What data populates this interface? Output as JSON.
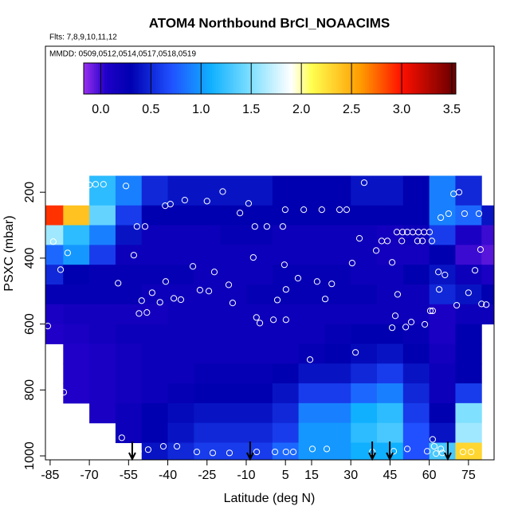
{
  "chart_data": {
    "type": "heatmap",
    "title": "ATOM4 Northbound BrCl_NOAACIMS",
    "subtitle": "Flts: 7,8,9,10,11,12",
    "annotation": "MMDD: 0509,0512,0514,0517,0518,0519",
    "xlabel": "Latitude (deg N)",
    "ylabel": "PSXC (mbar)",
    "xlim": [
      -86.8,
      84.8
    ],
    "xticks": [
      -85,
      -70,
      -55,
      -40,
      -25,
      -10,
      5,
      15,
      30,
      45,
      60,
      75
    ],
    "ylim": [
      1012,
      -243
    ],
    "yticks": [
      200,
      400,
      600,
      800,
      1000
    ],
    "x_edges": [
      -87,
      -80,
      -70,
      -60,
      -50,
      -40,
      -30,
      -20,
      -10,
      0,
      10,
      20,
      30,
      40,
      50,
      60,
      70,
      80,
      85
    ],
    "y_edges": [
      150,
      240,
      300,
      360,
      420,
      480,
      540,
      600,
      660,
      720,
      780,
      840,
      900,
      960,
      1012
    ],
    "values": [
      [
        null,
        1.9,
        1.2,
        0.9,
        0.5,
        0.4,
        0.4,
        0.4,
        0.4,
        0.3,
        0.3,
        0.3,
        0.4,
        0.4,
        0.3,
        0.9,
        0.5,
        null
      ],
      [
        2.9,
        2.4,
        1.4,
        0.6,
        0.3,
        0.3,
        0.3,
        0.3,
        0.3,
        0.3,
        0.3,
        0.3,
        0.3,
        0.3,
        0.3,
        0.9,
        0.8,
        0.4
      ],
      [
        1.6,
        1.2,
        0.9,
        0.4,
        0.2,
        0.2,
        0.2,
        0.25,
        0.25,
        0.2,
        0.2,
        0.2,
        0.2,
        0.15,
        0.2,
        0.6,
        0.1,
        0.0
      ],
      [
        0.8,
        1.0,
        0.6,
        0.2,
        0.2,
        0.2,
        0.2,
        0.2,
        0.2,
        0.2,
        0.2,
        0.2,
        0.2,
        0.15,
        0.15,
        0.3,
        0.0,
        -0.05
      ],
      [
        0.5,
        0.3,
        0.25,
        0.25,
        0.25,
        0.25,
        0.2,
        0.2,
        0.2,
        0.25,
        0.25,
        0.25,
        0.2,
        0.2,
        0.3,
        0.4,
        0.2,
        0.1
      ],
      [
        0.25,
        0.25,
        0.25,
        0.25,
        0.2,
        0.2,
        0.2,
        0.2,
        0.25,
        0.25,
        0.25,
        0.25,
        0.25,
        0.2,
        0.2,
        0.5,
        0.4,
        0.3
      ],
      [
        0.1,
        0.15,
        0.15,
        0.15,
        0.15,
        0.2,
        0.2,
        0.2,
        0.2,
        0.2,
        0.2,
        0.2,
        0.2,
        0.2,
        0.2,
        0.1,
        0.2,
        0.2
      ],
      [
        0.05,
        0.1,
        0.15,
        0.2,
        0.2,
        0.2,
        0.2,
        0.2,
        0.2,
        0.2,
        0.2,
        0.25,
        0.3,
        0.3,
        0.25,
        0.1,
        0.3,
        null
      ],
      [
        null,
        0.05,
        0.1,
        0.15,
        0.2,
        0.2,
        0.2,
        0.2,
        0.2,
        0.2,
        0.25,
        0.3,
        0.35,
        0.4,
        0.3,
        0.15,
        0.3,
        null
      ],
      [
        null,
        0.05,
        0.1,
        0.15,
        0.2,
        0.2,
        0.25,
        0.25,
        0.25,
        0.3,
        0.4,
        0.4,
        0.5,
        0.6,
        0.4,
        0.2,
        0.3,
        null
      ],
      [
        null,
        0.05,
        0.1,
        0.15,
        0.2,
        0.25,
        0.3,
        0.3,
        0.3,
        0.4,
        0.6,
        0.6,
        0.8,
        0.9,
        0.5,
        0.2,
        0.6,
        null
      ],
      [
        null,
        null,
        0.1,
        0.2,
        0.3,
        0.35,
        0.4,
        0.4,
        0.4,
        0.5,
        0.9,
        0.9,
        1.1,
        1.2,
        0.6,
        0.3,
        1.5,
        null
      ],
      [
        null,
        null,
        null,
        0.2,
        0.3,
        0.4,
        0.5,
        0.5,
        0.5,
        0.6,
        1.0,
        1.0,
        1.2,
        1.3,
        0.7,
        0.4,
        1.6,
        null
      ],
      [
        null,
        null,
        null,
        null,
        0.4,
        0.5,
        0.6,
        0.6,
        0.6,
        0.8,
        1.0,
        1.0,
        1.1,
        1.1,
        0.7,
        1.3,
        2.3,
        null
      ]
    ],
    "points": {
      "x": [
        -84.4,
        -72.8,
        -70,
        -67.6,
        -64.6,
        -56,
        -83.8,
        -78.3,
        -81,
        -59,
        -53,
        -51.8,
        -48.7,
        -51,
        -48,
        -50,
        -46,
        -43,
        -40.8,
        -37.7,
        -41,
        -39,
        -35,
        -33.5,
        -30.4,
        -27.7,
        -24.3,
        -25,
        -22.2,
        -19,
        -16.7,
        -15.2,
        -12.4,
        -9.1,
        -7.3,
        -6.7,
        -6.1,
        -4.8,
        -2.1,
        0.4,
        1.9,
        4,
        5.2,
        4.9,
        5.2,
        4.6,
        9.8,
        12,
        14.4,
        17.1,
        18.9,
        20.2,
        22.7,
        25.7,
        28.4,
        30.5,
        31.8,
        35.1,
        33.3,
        39.7,
        41.8,
        44,
        45.8,
        47.6,
        47.9,
        49.8,
        51.6,
        53.7,
        55.9,
        58,
        60.1,
        61,
        49.5,
        55.5,
        57.4,
        47,
        45.8,
        51,
        53.1,
        58.3,
        60.4,
        61.3,
        63.8,
        64.4,
        67.4,
        69.3,
        71.4,
        73.5,
        79,
        70.5,
        75,
        80,
        81.8,
        77.5,
        79.6,
        63.5,
        66,
        -57.6,
        -47.5,
        -41.7,
        -36.5,
        -28.9,
        -22.8,
        -16.4,
        -6,
        1,
        5.2,
        8,
        15.3,
        20.8,
        38.2,
        46.4,
        51.6,
        59.2,
        61.3,
        61.9,
        64.4,
        62.6,
        65,
        72.9,
        76,
        -85.9,
        -79.8,
        -51.2
      ],
      "y": [
        205,
        198,
        178,
        176,
        176,
        181,
        350,
        384,
        435,
        476,
        391,
        304,
        304,
        568,
        565,
        529,
        505,
        534,
        471,
        522,
        241,
        236,
        526,
        224,
        425,
        497,
        500,
        227,
        442,
        198,
        481,
        536,
        263,
        234,
        398,
        304,
        580,
        597,
        304,
        587,
        527,
        304,
        495,
        253,
        587,
        420,
        461,
        253,
        708,
        471,
        253,
        524,
        478,
        253,
        253,
        415,
        686,
        171,
        340,
        377,
        348,
        348,
        413,
        321,
        510,
        321,
        321,
        321,
        321,
        321,
        321,
        348,
        348,
        348,
        348,
        575,
        611,
        609,
        594,
        601,
        560,
        560,
        495,
        277,
        265,
        205,
        200,
        265,
        265,
        543,
        505,
        539,
        541,
        437,
        374,
        442,
        451,
        945,
        981,
        971,
        971,
        988,
        991,
        991,
        988,
        988,
        988,
        988,
        979,
        979,
        988,
        986,
        979,
        986,
        950,
        971,
        979,
        993,
        991,
        988,
        988,
        606,
        807,
        986
      ],
      "color": "#ffffff"
    },
    "arrows": [
      -53.6,
      -8.5,
      38.2,
      44.9,
      67.1
    ],
    "colorbar": {
      "lim": [
        -0.17,
        3.54
      ],
      "ticks": [
        {
          "value": 0,
          "label": "0.0"
        },
        0.5,
        {
          "value": 1,
          "label": "1.0"
        },
        1.5,
        {
          "value": 2,
          "label": "2.0"
        },
        2.5,
        {
          "value": 3,
          "label": "3.0"
        },
        3.5
      ],
      "stops": [
        [
          -0.17,
          "#9a30f0"
        ],
        [
          0.05,
          "#2000c8"
        ],
        [
          0.3,
          "#0000b0"
        ],
        [
          0.7,
          "#2050ff"
        ],
        [
          1.1,
          "#10b0ff"
        ],
        [
          1.5,
          "#80e0ff"
        ],
        [
          1.9,
          "#ffffff"
        ],
        [
          2.1,
          "#ffff50"
        ],
        [
          2.6,
          "#ff9900"
        ],
        [
          3.0,
          "#ff1000"
        ],
        [
          3.5,
          "#700000"
        ]
      ]
    }
  }
}
